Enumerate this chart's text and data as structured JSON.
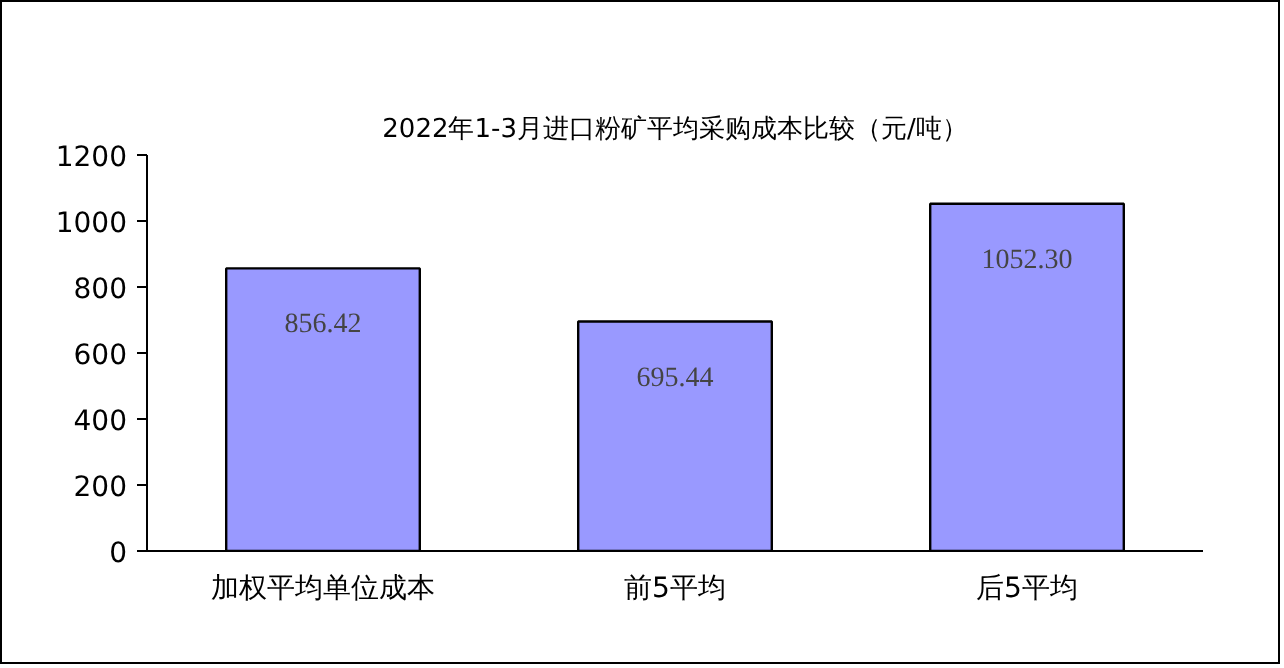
{
  "chart_data": {
    "type": "bar",
    "title": "2022年1-3月进口粉矿平均采购成本比较（元/吨）",
    "categories": [
      "加权平均单位成本",
      "前5平均",
      "后5平均"
    ],
    "values": [
      856.42,
      695.44,
      1052.3
    ],
    "value_labels": [
      "856.42",
      "695.44",
      "1052.30"
    ],
    "color": "#9999ff",
    "ylim": [
      0,
      1200
    ],
    "yticks": [
      0,
      200,
      400,
      600,
      800,
      1000,
      1200
    ],
    "grid": false
  }
}
